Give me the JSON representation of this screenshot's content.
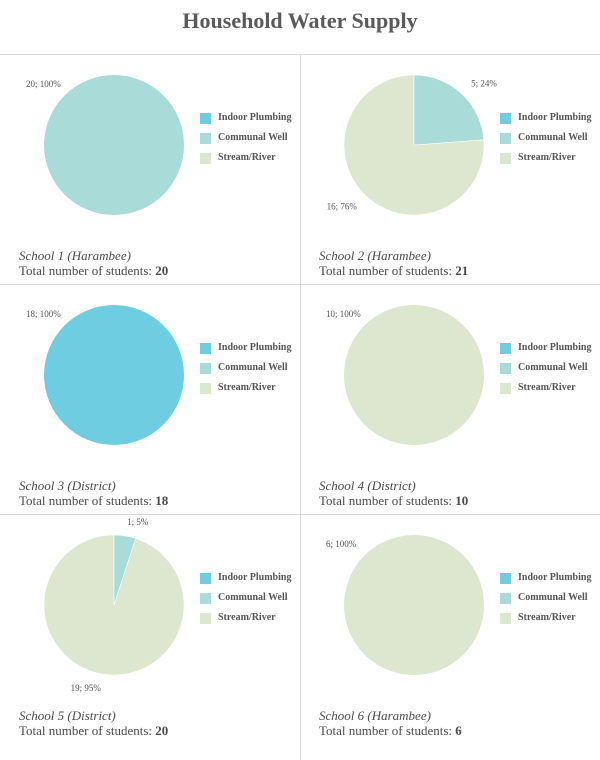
{
  "title": "Household Water Supply",
  "legend": {
    "items": [
      {
        "label": "Indoor Plumbing",
        "color": "#6ecde1"
      },
      {
        "label": "Communal Well",
        "color": "#a9dcd8"
      },
      {
        "label": "Stream/River",
        "color": "#dde6cf"
      }
    ]
  },
  "total_prefix": "Total number of students: ",
  "chart_data": [
    {
      "type": "pie",
      "name": "School 1 (Harambee)",
      "total": "20",
      "categories": [
        "Indoor Plumbing",
        "Communal Well",
        "Stream/River"
      ],
      "values": [
        0,
        20,
        0
      ],
      "data_labels": [
        "",
        "20; 100%",
        ""
      ]
    },
    {
      "type": "pie",
      "name": "School 2 (Harambee)",
      "total": "21",
      "categories": [
        "Indoor Plumbing",
        "Communal Well",
        "Stream/River"
      ],
      "values": [
        0,
        5,
        16
      ],
      "data_labels": [
        "",
        "5; 24%",
        "16; 76%"
      ]
    },
    {
      "type": "pie",
      "name": "School 3 (District)",
      "total": "18",
      "categories": [
        "Indoor Plumbing",
        "Communal Well",
        "Stream/River"
      ],
      "values": [
        18,
        0,
        0
      ],
      "data_labels": [
        "18; 100%",
        "",
        ""
      ]
    },
    {
      "type": "pie",
      "name": "School 4 (District)",
      "total": "10",
      "categories": [
        "Indoor Plumbing",
        "Communal Well",
        "Stream/River"
      ],
      "values": [
        0,
        0,
        10
      ],
      "data_labels": [
        "",
        "",
        "10; 100%"
      ]
    },
    {
      "type": "pie",
      "name": "School 5 (District)",
      "total": "20",
      "categories": [
        "Indoor Plumbing",
        "Communal Well",
        "Stream/River"
      ],
      "values": [
        0,
        1,
        19
      ],
      "data_labels": [
        "",
        "1; 5%",
        "19; 95%"
      ]
    },
    {
      "type": "pie",
      "name": "School 6 (Harambee)",
      "total": "6",
      "categories": [
        "Indoor Plumbing",
        "Communal Well",
        "Stream/River"
      ],
      "values": [
        0,
        0,
        6
      ],
      "data_labels": [
        "",
        "",
        "6; 100%"
      ]
    }
  ]
}
